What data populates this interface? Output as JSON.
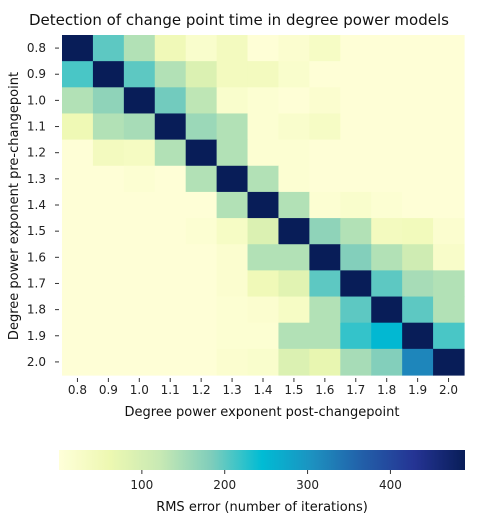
{
  "chart_data": {
    "type": "heatmap",
    "title": "Detection of change point time in degree power models",
    "xlabel": "Degree power exponent post-changepoint",
    "ylabel": "Degree power exponent pre-changepoint",
    "x_categories": [
      "0.8",
      "0.9",
      "1.0",
      "1.1",
      "1.2",
      "1.3",
      "1.4",
      "1.5",
      "1.6",
      "1.7",
      "1.8",
      "1.9",
      "2.0"
    ],
    "y_categories": [
      "0.8",
      "0.9",
      "1.0",
      "1.1",
      "1.2",
      "1.3",
      "1.4",
      "1.5",
      "1.6",
      "1.7",
      "1.8",
      "1.9",
      "2.0"
    ],
    "colormap": "YlGnBu",
    "colorbar": {
      "label": "RMS error (number of iterations)",
      "vmin": 0,
      "vmax": 490,
      "ticks": [
        100,
        200,
        300,
        400
      ],
      "orientation": "horizontal"
    },
    "values": [
      [
        490,
        200,
        140,
        50,
        20,
        40,
        5,
        15,
        30,
        5,
        5,
        5,
        5
      ],
      [
        210,
        490,
        200,
        140,
        90,
        40,
        40,
        20,
        5,
        5,
        5,
        5,
        5
      ],
      [
        140,
        170,
        490,
        190,
        130,
        20,
        10,
        5,
        15,
        5,
        5,
        5,
        5
      ],
      [
        55,
        140,
        150,
        490,
        160,
        140,
        10,
        20,
        30,
        5,
        5,
        5,
        5
      ],
      [
        5,
        40,
        35,
        140,
        490,
        140,
        10,
        10,
        5,
        5,
        5,
        5,
        5
      ],
      [
        5,
        5,
        10,
        5,
        140,
        490,
        140,
        10,
        5,
        5,
        5,
        5,
        5
      ],
      [
        5,
        5,
        5,
        5,
        5,
        140,
        490,
        140,
        10,
        20,
        10,
        5,
        5
      ],
      [
        5,
        5,
        5,
        5,
        10,
        30,
        90,
        490,
        170,
        140,
        40,
        45,
        15
      ],
      [
        5,
        5,
        5,
        5,
        5,
        15,
        140,
        140,
        490,
        180,
        140,
        110,
        25
      ],
      [
        5,
        5,
        5,
        5,
        5,
        15,
        50,
        80,
        200,
        490,
        200,
        150,
        140
      ],
      [
        5,
        5,
        5,
        5,
        5,
        10,
        15,
        30,
        140,
        200,
        490,
        200,
        140
      ],
      [
        5,
        5,
        5,
        5,
        5,
        10,
        10,
        140,
        140,
        220,
        250,
        490,
        210
      ],
      [
        5,
        5,
        5,
        5,
        5,
        15,
        20,
        90,
        70,
        150,
        180,
        320,
        490
      ]
    ]
  }
}
